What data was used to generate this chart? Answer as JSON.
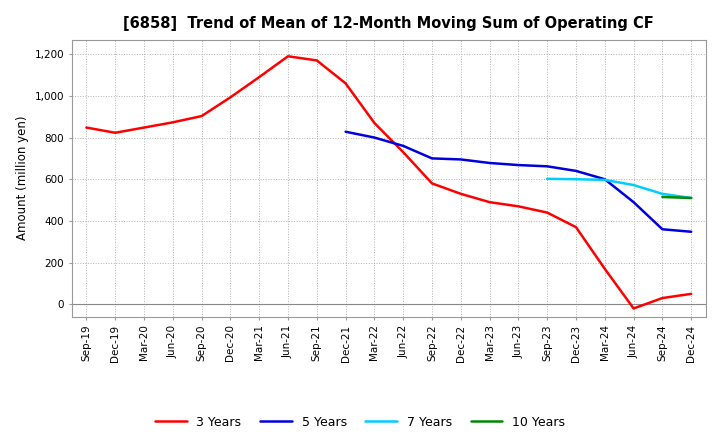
{
  "title": "[6858]  Trend of Mean of 12-Month Moving Sum of Operating CF",
  "ylabel": "Amount (million yen)",
  "ylim": [
    -60,
    1270
  ],
  "yticks": [
    0,
    200,
    400,
    600,
    800,
    1000,
    1200
  ],
  "background_color": "#ffffff",
  "grid_color": "#b0b0b0",
  "series": {
    "3 Years": {
      "color": "#ff0000",
      "x": [
        "Sep-19",
        "Dec-19",
        "Mar-20",
        "Jun-20",
        "Sep-20",
        "Dec-20",
        "Mar-21",
        "Jun-21",
        "Sep-21",
        "Dec-21",
        "Mar-22",
        "Jun-22",
        "Sep-22",
        "Dec-22",
        "Mar-23",
        "Jun-23",
        "Sep-23",
        "Dec-23",
        "Mar-24",
        "Jun-24",
        "Sep-24",
        "Dec-24"
      ],
      "y": [
        848,
        823,
        848,
        873,
        903,
        993,
        1090,
        1190,
        1170,
        1060,
        870,
        730,
        580,
        530,
        490,
        470,
        440,
        370,
        170,
        -20,
        30,
        50
      ]
    },
    "5 Years": {
      "color": "#0000dd",
      "x": [
        "Dec-21",
        "Mar-22",
        "Jun-22",
        "Sep-22",
        "Dec-22",
        "Mar-23",
        "Jun-23",
        "Sep-23",
        "Dec-23",
        "Mar-24",
        "Jun-24",
        "Sep-24",
        "Dec-24"
      ],
      "y": [
        828,
        800,
        760,
        700,
        695,
        678,
        668,
        662,
        640,
        600,
        490,
        360,
        348
      ]
    },
    "7 Years": {
      "color": "#00ccff",
      "x": [
        "Sep-23",
        "Dec-23",
        "Mar-24",
        "Jun-24",
        "Sep-24",
        "Dec-24"
      ],
      "y": [
        602,
        600,
        597,
        572,
        530,
        510
      ]
    },
    "10 Years": {
      "color": "#008800",
      "x": [
        "Sep-24",
        "Dec-24"
      ],
      "y": [
        515,
        510
      ]
    }
  },
  "xtick_labels": [
    "Sep-19",
    "Dec-19",
    "Mar-20",
    "Jun-20",
    "Sep-20",
    "Dec-20",
    "Mar-21",
    "Jun-21",
    "Sep-21",
    "Dec-21",
    "Mar-22",
    "Jun-22",
    "Sep-22",
    "Dec-22",
    "Mar-23",
    "Jun-23",
    "Sep-23",
    "Dec-23",
    "Mar-24",
    "Jun-24",
    "Sep-24",
    "Dec-24"
  ],
  "legend_order": [
    "3 Years",
    "5 Years",
    "7 Years",
    "10 Years"
  ],
  "figsize": [
    7.2,
    4.4
  ],
  "dpi": 100
}
